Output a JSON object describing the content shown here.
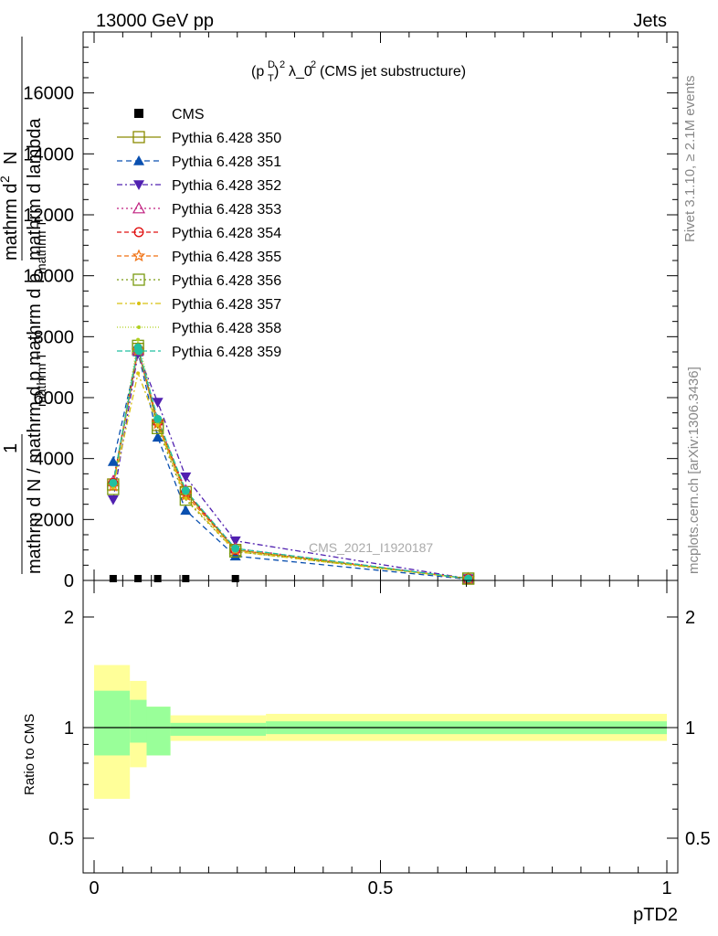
{
  "header": {
    "left": "13000 GeV pp",
    "right": "Jets"
  },
  "side_labels": {
    "rivet": "Rivet 3.1.10, ≥ 2.1M events",
    "mcplots": "mcplots.cern.ch [arXiv:1306.3436]"
  },
  "watermark": "CMS_2021_I1920187",
  "colors": {
    "band_inner": "#99ff99",
    "band_outer": "#ffff99",
    "cms": "#000000"
  },
  "chart_data": [
    {
      "type": "line",
      "title": "(p_T^D)^2 λ_0^2 (CMS jet substructure)",
      "ylabel_lines": [
        "mathrm d^2N",
        "mathrm d p_mathrm T mathrm d lambda",
        "1",
        "mathrm d N / mathrm d p_mathrm T"
      ],
      "ylabel_parts": {
        "a": "mathrm d",
        "b": "2",
        "c": "N",
        "d": "mathrm d p",
        "e": "mathrm T",
        "f": "mathrm d lambda",
        "g": "1",
        "h": "mathrm d N / mathrm d p",
        "i": "mathrm T"
      },
      "xlim": [
        0,
        1
      ],
      "ylim": [
        0,
        18000
      ],
      "yticks": [
        0,
        2000,
        4000,
        6000,
        8000,
        10000,
        12000,
        14000,
        16000
      ],
      "ytick_labels": [
        "0",
        "2000",
        "4000",
        "6000",
        "8000",
        "10000",
        "12000",
        "14000",
        "16000"
      ],
      "legend_position": "top-left",
      "x": [
        0.0333,
        0.0767,
        0.1111,
        0.16,
        0.2467,
        0.6533
      ],
      "series": [
        {
          "name": "CMS",
          "color": "#000000",
          "marker": "square-filled",
          "dash": "none",
          "values": [
            0,
            0,
            0,
            0,
            0,
            0
          ]
        },
        {
          "name": "Pythia 6.428 350",
          "color": "#8b8b00",
          "marker": "square-open",
          "dash": "solid",
          "values": [
            3150,
            7600,
            5100,
            2900,
            1000,
            60
          ]
        },
        {
          "name": "Pythia 6.428 351",
          "color": "#0a50b0",
          "marker": "triangle-up-filled",
          "dash": "6,4",
          "values": [
            3900,
            7500,
            4700,
            2300,
            800,
            40
          ]
        },
        {
          "name": "Pythia 6.428 352",
          "color": "#5020b0",
          "marker": "triangle-down-filled",
          "dash": "6,3,2,3",
          "values": [
            2650,
            7450,
            5850,
            3400,
            1300,
            60
          ]
        },
        {
          "name": "Pythia 6.428 353",
          "color": "#c02080",
          "marker": "triangle-up-open",
          "dash": "2,3",
          "values": [
            3250,
            7550,
            5250,
            2950,
            1050,
            60
          ]
        },
        {
          "name": "Pythia 6.428 354",
          "color": "#e01010",
          "marker": "circle-open",
          "dash": "5,3",
          "values": [
            3200,
            7600,
            5200,
            2900,
            1000,
            60
          ]
        },
        {
          "name": "Pythia 6.428 355",
          "color": "#f07010",
          "marker": "star-open",
          "dash": "5,3",
          "values": [
            3100,
            7550,
            5150,
            2800,
            1000,
            60
          ]
        },
        {
          "name": "Pythia 6.428 356",
          "color": "#7a9a10",
          "marker": "square-open",
          "dash": "2,3",
          "values": [
            3000,
            7700,
            5000,
            2650,
            950,
            60
          ]
        },
        {
          "name": "Pythia 6.428 357",
          "color": "#d8c010",
          "marker": "small-dot",
          "dash": "6,3,2,3",
          "values": [
            3050,
            6800,
            5100,
            2700,
            950,
            60
          ]
        },
        {
          "name": "Pythia 6.428 358",
          "color": "#b0d020",
          "marker": "small-dot",
          "dash": "1,2",
          "values": [
            3100,
            7900,
            5200,
            2850,
            1000,
            60
          ]
        },
        {
          "name": "Pythia 6.428 359",
          "color": "#20c0a0",
          "marker": "circle-filled",
          "dash": "6,3",
          "values": [
            3200,
            7650,
            5300,
            2950,
            1050,
            60
          ]
        }
      ]
    },
    {
      "type": "area",
      "ylabel": "Ratio to CMS",
      "xlabel": "pTD2",
      "xlim": [
        0,
        1
      ],
      "ylim": [
        0.35,
        2.3
      ],
      "xticks": [
        0,
        0.5,
        1
      ],
      "xtick_labels": [
        "0",
        "0.5",
        "1"
      ],
      "yticks": [
        0.5,
        1,
        2
      ],
      "ytick_labels": [
        "0.5",
        "1",
        "2"
      ],
      "reference_line": 1,
      "bins": [
        {
          "x0": 0.0,
          "x1": 0.0625,
          "inner": [
            0.84,
            1.26
          ],
          "outer": [
            0.64,
            1.48
          ]
        },
        {
          "x0": 0.0625,
          "x1": 0.0917,
          "inner": [
            0.91,
            1.19
          ],
          "outer": [
            0.78,
            1.34
          ]
        },
        {
          "x0": 0.0917,
          "x1": 0.1333,
          "inner": [
            0.84,
            1.14
          ],
          "outer": [
            0.84,
            1.14
          ]
        },
        {
          "x0": 0.1333,
          "x1": 0.3,
          "inner": [
            0.95,
            1.03
          ],
          "outer": [
            0.92,
            1.08
          ]
        },
        {
          "x0": 0.3,
          "x1": 1.0,
          "inner": [
            0.96,
            1.04
          ],
          "outer": [
            0.92,
            1.09
          ]
        }
      ]
    }
  ]
}
